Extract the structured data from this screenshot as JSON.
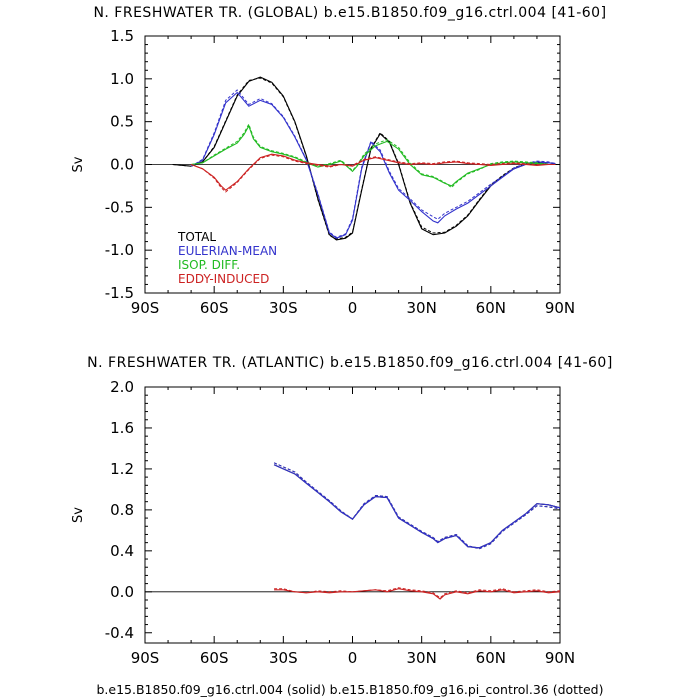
{
  "footer": "b.e15.B1850.f09_g16.ctrl.004 (solid) b.e15.B1850.f09_g16.pi_control.36 (dotted)",
  "colors": {
    "total": "#000000",
    "eulerian": "#3333cc",
    "isop": "#22bb22",
    "eddy": "#cc2222"
  },
  "chart_data": [
    {
      "type": "line",
      "title": "N. FRESHWATER TR. (GLOBAL) b.e15.B1850.f09_g16.ctrl.004 [41-60]",
      "ylabel": "Sv",
      "xlim": [
        -90,
        90
      ],
      "ylim": [
        -1.5,
        1.5
      ],
      "xticks": [
        -90,
        -60,
        -30,
        0,
        30,
        60,
        90
      ],
      "xtick_labels": [
        "90S",
        "60S",
        "30S",
        "0",
        "30N",
        "60N",
        "90N"
      ],
      "yticks": [
        -1.5,
        -1.0,
        -0.5,
        0.0,
        0.5,
        1.0,
        1.5
      ],
      "ytick_labels": [
        "-1.5",
        "-1.0",
        "-0.5",
        "0.0",
        "0.5",
        "1.0",
        "1.5"
      ],
      "zero_line": true,
      "legend_position": "bottom-left",
      "series": [
        {
          "name": "TOTAL",
          "color": "#000000",
          "x": [
            -78,
            -70,
            -65,
            -60,
            -55,
            -50,
            -45,
            -40,
            -35,
            -30,
            -25,
            -20,
            -15,
            -10,
            -7,
            -3,
            0,
            4,
            8,
            12,
            16,
            20,
            25,
            30,
            35,
            40,
            45,
            50,
            55,
            60,
            65,
            70,
            75,
            80,
            85,
            88
          ],
          "solid": [
            0,
            -0.02,
            0.03,
            0.2,
            0.5,
            0.8,
            0.97,
            1.02,
            0.96,
            0.8,
            0.5,
            0.1,
            -0.4,
            -0.82,
            -0.88,
            -0.86,
            -0.8,
            -0.3,
            0.18,
            0.36,
            0.26,
            0.0,
            -0.45,
            -0.75,
            -0.82,
            -0.8,
            -0.72,
            -0.6,
            -0.42,
            -0.25,
            -0.14,
            -0.05,
            0.0,
            0.02,
            0.02,
            0.01
          ],
          "dotted": [
            0,
            -0.02,
            0.03,
            0.21,
            0.51,
            0.81,
            0.98,
            1.01,
            0.95,
            0.79,
            0.49,
            0.09,
            -0.41,
            -0.83,
            -0.87,
            -0.85,
            -0.79,
            -0.29,
            0.19,
            0.37,
            0.27,
            0.01,
            -0.44,
            -0.73,
            -0.8,
            -0.79,
            -0.71,
            -0.59,
            -0.41,
            -0.24,
            -0.13,
            -0.04,
            0.01,
            0.03,
            0.02,
            0.01
          ]
        },
        {
          "name": "EULERIAN-MEAN",
          "color": "#3333cc",
          "x": [
            -70,
            -65,
            -60,
            -55,
            -50,
            -45,
            -40,
            -35,
            -30,
            -25,
            -20,
            -15,
            -10,
            -7,
            -3,
            0,
            4,
            8,
            12,
            16,
            20,
            25,
            30,
            35,
            37,
            40,
            45,
            50,
            55,
            60,
            65,
            70,
            75,
            80,
            85,
            88
          ],
          "solid": [
            -0.02,
            0.05,
            0.35,
            0.72,
            0.84,
            0.68,
            0.75,
            0.7,
            0.55,
            0.32,
            0.05,
            -0.35,
            -0.8,
            -0.86,
            -0.82,
            -0.65,
            -0.05,
            0.26,
            0.15,
            -0.1,
            -0.3,
            -0.42,
            -0.55,
            -0.66,
            -0.68,
            -0.6,
            -0.52,
            -0.45,
            -0.35,
            -0.25,
            -0.15,
            -0.05,
            0.0,
            0.03,
            0.02,
            0.01
          ],
          "dotted": [
            -0.02,
            0.06,
            0.37,
            0.75,
            0.87,
            0.7,
            0.77,
            0.71,
            0.56,
            0.33,
            0.06,
            -0.34,
            -0.79,
            -0.85,
            -0.81,
            -0.63,
            -0.03,
            0.27,
            0.17,
            -0.08,
            -0.28,
            -0.4,
            -0.53,
            -0.61,
            -0.64,
            -0.57,
            -0.5,
            -0.43,
            -0.33,
            -0.23,
            -0.14,
            -0.04,
            0.01,
            0.04,
            0.03,
            0.01
          ]
        },
        {
          "name": "ISOP. DIFF.",
          "color": "#22bb22",
          "x": [
            -70,
            -65,
            -60,
            -55,
            -50,
            -47,
            -45,
            -43,
            -40,
            -35,
            -30,
            -25,
            -20,
            -15,
            -10,
            -5,
            0,
            2,
            5,
            10,
            15,
            20,
            25,
            30,
            35,
            40,
            43,
            45,
            50,
            55,
            60,
            65,
            70,
            75,
            80,
            85,
            88
          ],
          "solid": [
            0,
            0.02,
            0.1,
            0.18,
            0.25,
            0.35,
            0.45,
            0.3,
            0.2,
            0.15,
            0.12,
            0.08,
            0.02,
            -0.03,
            0.0,
            0.04,
            -0.08,
            -0.02,
            0.1,
            0.22,
            0.27,
            0.18,
            0.0,
            -0.12,
            -0.15,
            -0.22,
            -0.25,
            -0.2,
            -0.1,
            -0.05,
            0.0,
            0.02,
            0.03,
            0.02,
            0.01,
            0.0,
            0.0
          ],
          "dotted": [
            0,
            0.02,
            0.11,
            0.19,
            0.27,
            0.37,
            0.47,
            0.32,
            0.21,
            0.16,
            0.13,
            0.09,
            0.03,
            -0.02,
            0.01,
            0.05,
            -0.07,
            -0.01,
            0.12,
            0.24,
            0.29,
            0.2,
            0.02,
            -0.11,
            -0.14,
            -0.21,
            -0.27,
            -0.21,
            -0.11,
            -0.06,
            0.01,
            0.03,
            0.04,
            0.03,
            0.02,
            0.0,
            0.0
          ]
        },
        {
          "name": "EDDY-INDUCED",
          "color": "#cc2222",
          "x": [
            -70,
            -65,
            -60,
            -57,
            -55,
            -50,
            -45,
            -40,
            -35,
            -30,
            -25,
            -20,
            -15,
            -10,
            -5,
            0,
            5,
            10,
            15,
            20,
            25,
            30,
            35,
            40,
            45,
            50,
            55,
            60,
            65,
            70,
            75,
            80,
            85,
            88
          ],
          "solid": [
            0,
            -0.05,
            -0.15,
            -0.25,
            -0.3,
            -0.2,
            -0.05,
            0.08,
            0.12,
            0.1,
            0.05,
            0.02,
            0.0,
            -0.02,
            0.0,
            -0.02,
            0.05,
            0.08,
            0.05,
            0.02,
            0.0,
            0.01,
            0.0,
            0.02,
            0.03,
            0.01,
            0.0,
            -0.01,
            0.0,
            0.01,
            0.0,
            -0.01,
            0.0,
            0.0
          ],
          "dotted": [
            0,
            -0.05,
            -0.16,
            -0.27,
            -0.32,
            -0.21,
            -0.06,
            0.07,
            0.11,
            0.09,
            0.04,
            0.01,
            -0.01,
            -0.03,
            0.0,
            -0.01,
            0.06,
            0.09,
            0.06,
            0.03,
            0.01,
            0.02,
            0.01,
            0.03,
            0.04,
            0.02,
            0.01,
            0.0,
            0.01,
            0.02,
            0.01,
            0.0,
            0.0,
            0.0
          ]
        }
      ]
    },
    {
      "type": "line",
      "title": "N. FRESHWATER TR. (ATLANTIC) b.e15.B1850.f09_g16.ctrl.004 [41-60]",
      "ylabel": "Sv",
      "xlim": [
        -90,
        90
      ],
      "ylim": [
        -0.5,
        2.0
      ],
      "xticks": [
        -90,
        -60,
        -30,
        0,
        30,
        60,
        90
      ],
      "xtick_labels": [
        "90S",
        "60S",
        "30S",
        "0",
        "30N",
        "60N",
        "90N"
      ],
      "yticks": [
        -0.4,
        0.0,
        0.4,
        0.8,
        1.2,
        1.6,
        2.0
      ],
      "ytick_labels": [
        "-0.4",
        "0.0",
        "0.4",
        "0.8",
        "1.2",
        "1.6",
        "2.0"
      ],
      "zero_line": true,
      "series": [
        {
          "name": "TOTAL",
          "color": "#000000",
          "x": [
            -34,
            -30,
            -25,
            -20,
            -15,
            -10,
            -5,
            0,
            5,
            10,
            15,
            20,
            25,
            30,
            35,
            37,
            40,
            45,
            50,
            55,
            60,
            65,
            70,
            75,
            80,
            85,
            90
          ],
          "solid": [
            1.24,
            1.2,
            1.15,
            1.06,
            0.97,
            0.88,
            0.78,
            0.71,
            0.85,
            0.93,
            0.92,
            0.72,
            0.65,
            0.58,
            0.52,
            0.48,
            0.52,
            0.55,
            0.44,
            0.43,
            0.48,
            0.6,
            0.68,
            0.76,
            0.86,
            0.85,
            0.82
          ],
          "dotted": [
            1.26,
            1.22,
            1.17,
            1.07,
            0.98,
            0.89,
            0.79,
            0.71,
            0.86,
            0.94,
            0.93,
            0.73,
            0.66,
            0.59,
            0.53,
            0.49,
            0.53,
            0.56,
            0.45,
            0.42,
            0.47,
            0.59,
            0.67,
            0.75,
            0.84,
            0.83,
            0.81
          ]
        },
        {
          "name": "EULERIAN-MEAN",
          "color": "#3333cc",
          "x": [
            -34,
            -30,
            -25,
            -20,
            -15,
            -10,
            -5,
            0,
            5,
            10,
            15,
            20,
            25,
            30,
            35,
            37,
            40,
            45,
            50,
            55,
            60,
            65,
            70,
            75,
            80,
            85,
            90
          ],
          "solid": [
            1.24,
            1.2,
            1.15,
            1.06,
            0.97,
            0.88,
            0.78,
            0.71,
            0.85,
            0.93,
            0.92,
            0.72,
            0.65,
            0.58,
            0.52,
            0.48,
            0.52,
            0.55,
            0.44,
            0.43,
            0.48,
            0.6,
            0.68,
            0.76,
            0.86,
            0.85,
            0.82
          ],
          "dotted": [
            1.26,
            1.22,
            1.17,
            1.07,
            0.98,
            0.89,
            0.79,
            0.71,
            0.86,
            0.94,
            0.93,
            0.73,
            0.66,
            0.59,
            0.53,
            0.49,
            0.53,
            0.56,
            0.45,
            0.42,
            0.47,
            0.59,
            0.67,
            0.75,
            0.84,
            0.83,
            0.81
          ]
        },
        {
          "name": "EDDY-INDUCED",
          "color": "#cc2222",
          "x": [
            -34,
            -30,
            -25,
            -20,
            -15,
            -10,
            -5,
            0,
            5,
            10,
            15,
            20,
            25,
            30,
            35,
            38,
            40,
            45,
            50,
            55,
            60,
            65,
            70,
            75,
            80,
            85,
            90
          ],
          "solid": [
            0.02,
            0.02,
            0.0,
            -0.01,
            0.0,
            -0.01,
            0.0,
            0.0,
            0.01,
            0.02,
            0.0,
            0.03,
            0.01,
            0.0,
            -0.02,
            -0.07,
            -0.03,
            0.0,
            -0.02,
            0.01,
            0.0,
            0.02,
            -0.01,
            0.0,
            0.01,
            -0.01,
            0.0
          ],
          "dotted": [
            0.03,
            0.03,
            0.0,
            -0.01,
            0.01,
            0.0,
            0.01,
            0.0,
            0.01,
            0.02,
            0.01,
            0.04,
            0.02,
            0.01,
            -0.01,
            -0.06,
            -0.02,
            0.01,
            -0.01,
            0.02,
            0.01,
            0.03,
            0.0,
            0.01,
            0.02,
            0.0,
            0.01
          ]
        }
      ]
    }
  ]
}
